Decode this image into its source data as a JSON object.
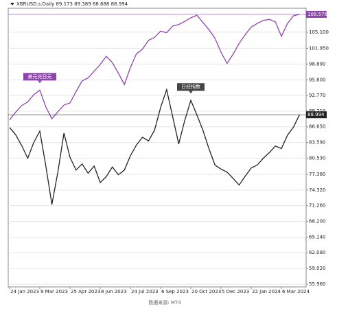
{
  "chart_data": {
    "type": "line",
    "title": "XBRUSD.s.Daily 89.173 89.389 88.688 88.994",
    "source": "数据来源: MT4",
    "categories": [
      "24 Jan 2023",
      null,
      null,
      null,
      null,
      "9 Mar 2023",
      null,
      null,
      null,
      null,
      "25 Apr 2023",
      null,
      null,
      null,
      null,
      "8 Jun 2023",
      null,
      null,
      null,
      null,
      "24 Jul 2023",
      null,
      null,
      null,
      null,
      "6 Sep 2023",
      null,
      null,
      null,
      null,
      "20 Oct 2023",
      null,
      null,
      null,
      null,
      "5 Dec 2023",
      null,
      null,
      null,
      null,
      "22 Jan 2024",
      null,
      null,
      null,
      null,
      "6 Mar 2024",
      null,
      null,
      null
    ],
    "ylim": [
      55.42,
      109.77
    ],
    "yticks": [
      {
        "value": 55.96,
        "label": "55.960"
      },
      {
        "value": 59.02,
        "label": "59.020"
      },
      {
        "value": 62.08,
        "label": "62.080"
      },
      {
        "value": 65.14,
        "label": "65.140"
      },
      {
        "value": 68.2,
        "label": "68.200"
      },
      {
        "value": 71.26,
        "label": "71.260"
      },
      {
        "value": 74.32,
        "label": "74.320"
      },
      {
        "value": 77.38,
        "label": "77.380"
      },
      {
        "value": 80.53,
        "label": "80.530"
      },
      {
        "value": 83.59,
        "label": "83.590"
      },
      {
        "value": 86.65,
        "label": "86.650"
      },
      {
        "value": 89.71,
        "label": "89.710"
      },
      {
        "value": 92.77,
        "label": "92.770"
      },
      {
        "value": 95.8,
        "label": "95.800"
      },
      {
        "value": 98.89,
        "label": "98.890"
      },
      {
        "value": 101.95,
        "label": "101.950"
      },
      {
        "value": 105.1,
        "label": "105.100"
      }
    ],
    "grid": true,
    "series": [
      {
        "name": "美元兑日元",
        "color": "#8e44ad",
        "last_label": "108.576",
        "values": [
          88.0,
          89.5,
          90.8,
          91.5,
          92.9,
          93.8,
          90.5,
          88.2,
          89.6,
          90.9,
          91.3,
          93.5,
          95.6,
          96.2,
          97.5,
          98.8,
          100.4,
          99.2,
          97.1,
          94.9,
          98.2,
          100.9,
          101.8,
          103.5,
          104.1,
          105.3,
          105.0,
          106.3,
          106.6,
          107.2,
          107.9,
          108.4,
          107.0,
          105.6,
          103.9,
          101.2,
          99.0,
          100.8,
          102.9,
          104.6,
          106.1,
          106.8,
          107.4,
          107.6,
          107.1,
          104.3,
          106.8,
          108.3,
          108.576
        ]
      },
      {
        "name": "日经指数",
        "color": "#222222",
        "last_label": "88.994",
        "values": [
          86.5,
          85.1,
          83.0,
          80.5,
          83.6,
          85.8,
          79.0,
          71.5,
          77.9,
          85.4,
          80.7,
          78.2,
          79.4,
          77.6,
          79.0,
          75.8,
          76.9,
          78.8,
          77.3,
          78.2,
          81.0,
          83.1,
          84.6,
          83.9,
          86.0,
          90.4,
          93.9,
          88.6,
          83.3,
          87.9,
          91.8,
          89.0,
          86.0,
          82.4,
          79.2,
          78.4,
          77.8,
          76.6,
          75.3,
          77.0,
          78.6,
          79.2,
          80.5,
          81.6,
          82.9,
          82.4,
          85.0,
          86.6,
          88.994
        ]
      }
    ]
  }
}
